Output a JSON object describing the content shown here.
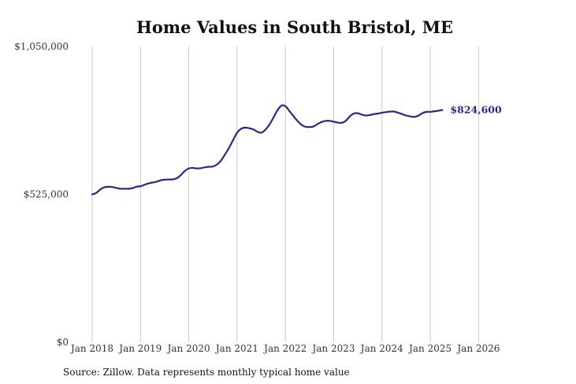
{
  "chart_data": {
    "type": "line",
    "title": "Home Values in South Bristol, ME",
    "source": "Source: Zillow. Data represents monthly typical home value",
    "xlabel": "",
    "ylabel": "",
    "ylim": [
      0,
      1050000
    ],
    "y_ticks": [
      0,
      525000,
      1050000
    ],
    "y_tick_labels": [
      "$0",
      "$525,000",
      "$1,050,000"
    ],
    "x_tick_labels": [
      "Jan 2018",
      "Jan 2019",
      "Jan 2020",
      "Jan 2021",
      "Jan 2022",
      "Jan 2023",
      "Jan 2024",
      "Jan 2025",
      "Jan 2026"
    ],
    "x_tick_dates": [
      "2018-01",
      "2019-01",
      "2020-01",
      "2021-01",
      "2022-01",
      "2023-01",
      "2024-01",
      "2025-01",
      "2026-01"
    ],
    "grid": "vertical",
    "line_color": "#2e2683",
    "end_label": "$824,600",
    "series": [
      {
        "points": [
          [
            "2018-01",
            525000
          ],
          [
            "2018-02",
            530000
          ],
          [
            "2018-03",
            542000
          ],
          [
            "2018-04",
            550000
          ],
          [
            "2018-05",
            552000
          ],
          [
            "2018-06",
            551000
          ],
          [
            "2018-07",
            548000
          ],
          [
            "2018-08",
            545000
          ],
          [
            "2018-09",
            545000
          ],
          [
            "2018-10",
            545000
          ],
          [
            "2018-11",
            547000
          ],
          [
            "2018-12",
            552000
          ],
          [
            "2019-01",
            554000
          ],
          [
            "2019-02",
            559000
          ],
          [
            "2019-03",
            564000
          ],
          [
            "2019-04",
            567000
          ],
          [
            "2019-05",
            570000
          ],
          [
            "2019-06",
            575000
          ],
          [
            "2019-07",
            577000
          ],
          [
            "2019-08",
            578000
          ],
          [
            "2019-09",
            578000
          ],
          [
            "2019-10",
            582000
          ],
          [
            "2019-11",
            593000
          ],
          [
            "2019-12",
            608000
          ],
          [
            "2020-01",
            617000
          ],
          [
            "2020-02",
            619000
          ],
          [
            "2020-03",
            617000
          ],
          [
            "2020-04",
            618000
          ],
          [
            "2020-05",
            621000
          ],
          [
            "2020-06",
            623000
          ],
          [
            "2020-07",
            624000
          ],
          [
            "2020-08",
            631000
          ],
          [
            "2020-09",
            645000
          ],
          [
            "2020-10",
            667000
          ],
          [
            "2020-11",
            690000
          ],
          [
            "2020-12",
            718000
          ],
          [
            "2021-01",
            744000
          ],
          [
            "2021-02",
            758000
          ],
          [
            "2021-03",
            762000
          ],
          [
            "2021-04",
            760000
          ],
          [
            "2021-05",
            756000
          ],
          [
            "2021-06",
            748000
          ],
          [
            "2021-07",
            744000
          ],
          [
            "2021-08",
            754000
          ],
          [
            "2021-09",
            772000
          ],
          [
            "2021-10",
            797000
          ],
          [
            "2021-11",
            823000
          ],
          [
            "2021-12",
            840000
          ],
          [
            "2022-01",
            838000
          ],
          [
            "2022-02",
            821000
          ],
          [
            "2022-03",
            803000
          ],
          [
            "2022-04",
            786000
          ],
          [
            "2022-05",
            772000
          ],
          [
            "2022-06",
            765000
          ],
          [
            "2022-07",
            764000
          ],
          [
            "2022-08",
            766000
          ],
          [
            "2022-09",
            775000
          ],
          [
            "2022-10",
            782000
          ],
          [
            "2022-11",
            786000
          ],
          [
            "2022-12",
            786000
          ],
          [
            "2023-01",
            783000
          ],
          [
            "2023-02",
            780000
          ],
          [
            "2023-03",
            779000
          ],
          [
            "2023-04",
            786000
          ],
          [
            "2023-05",
            802000
          ],
          [
            "2023-06",
            812000
          ],
          [
            "2023-07",
            813000
          ],
          [
            "2023-08",
            808000
          ],
          [
            "2023-09",
            805000
          ],
          [
            "2023-10",
            807000
          ],
          [
            "2023-11",
            810000
          ],
          [
            "2023-12",
            812000
          ],
          [
            "2024-01",
            815000
          ],
          [
            "2024-02",
            817000
          ],
          [
            "2024-03",
            819000
          ],
          [
            "2024-04",
            819000
          ],
          [
            "2024-05",
            815000
          ],
          [
            "2024-06",
            810000
          ],
          [
            "2024-07",
            805000
          ],
          [
            "2024-08",
            802000
          ],
          [
            "2024-09",
            800000
          ],
          [
            "2024-10",
            804000
          ],
          [
            "2024-11",
            813000
          ],
          [
            "2024-12",
            818000
          ],
          [
            "2025-01",
            818000
          ],
          [
            "2025-02",
            820000
          ],
          [
            "2025-03",
            822000
          ],
          [
            "2025-04",
            824600
          ]
        ]
      }
    ]
  }
}
